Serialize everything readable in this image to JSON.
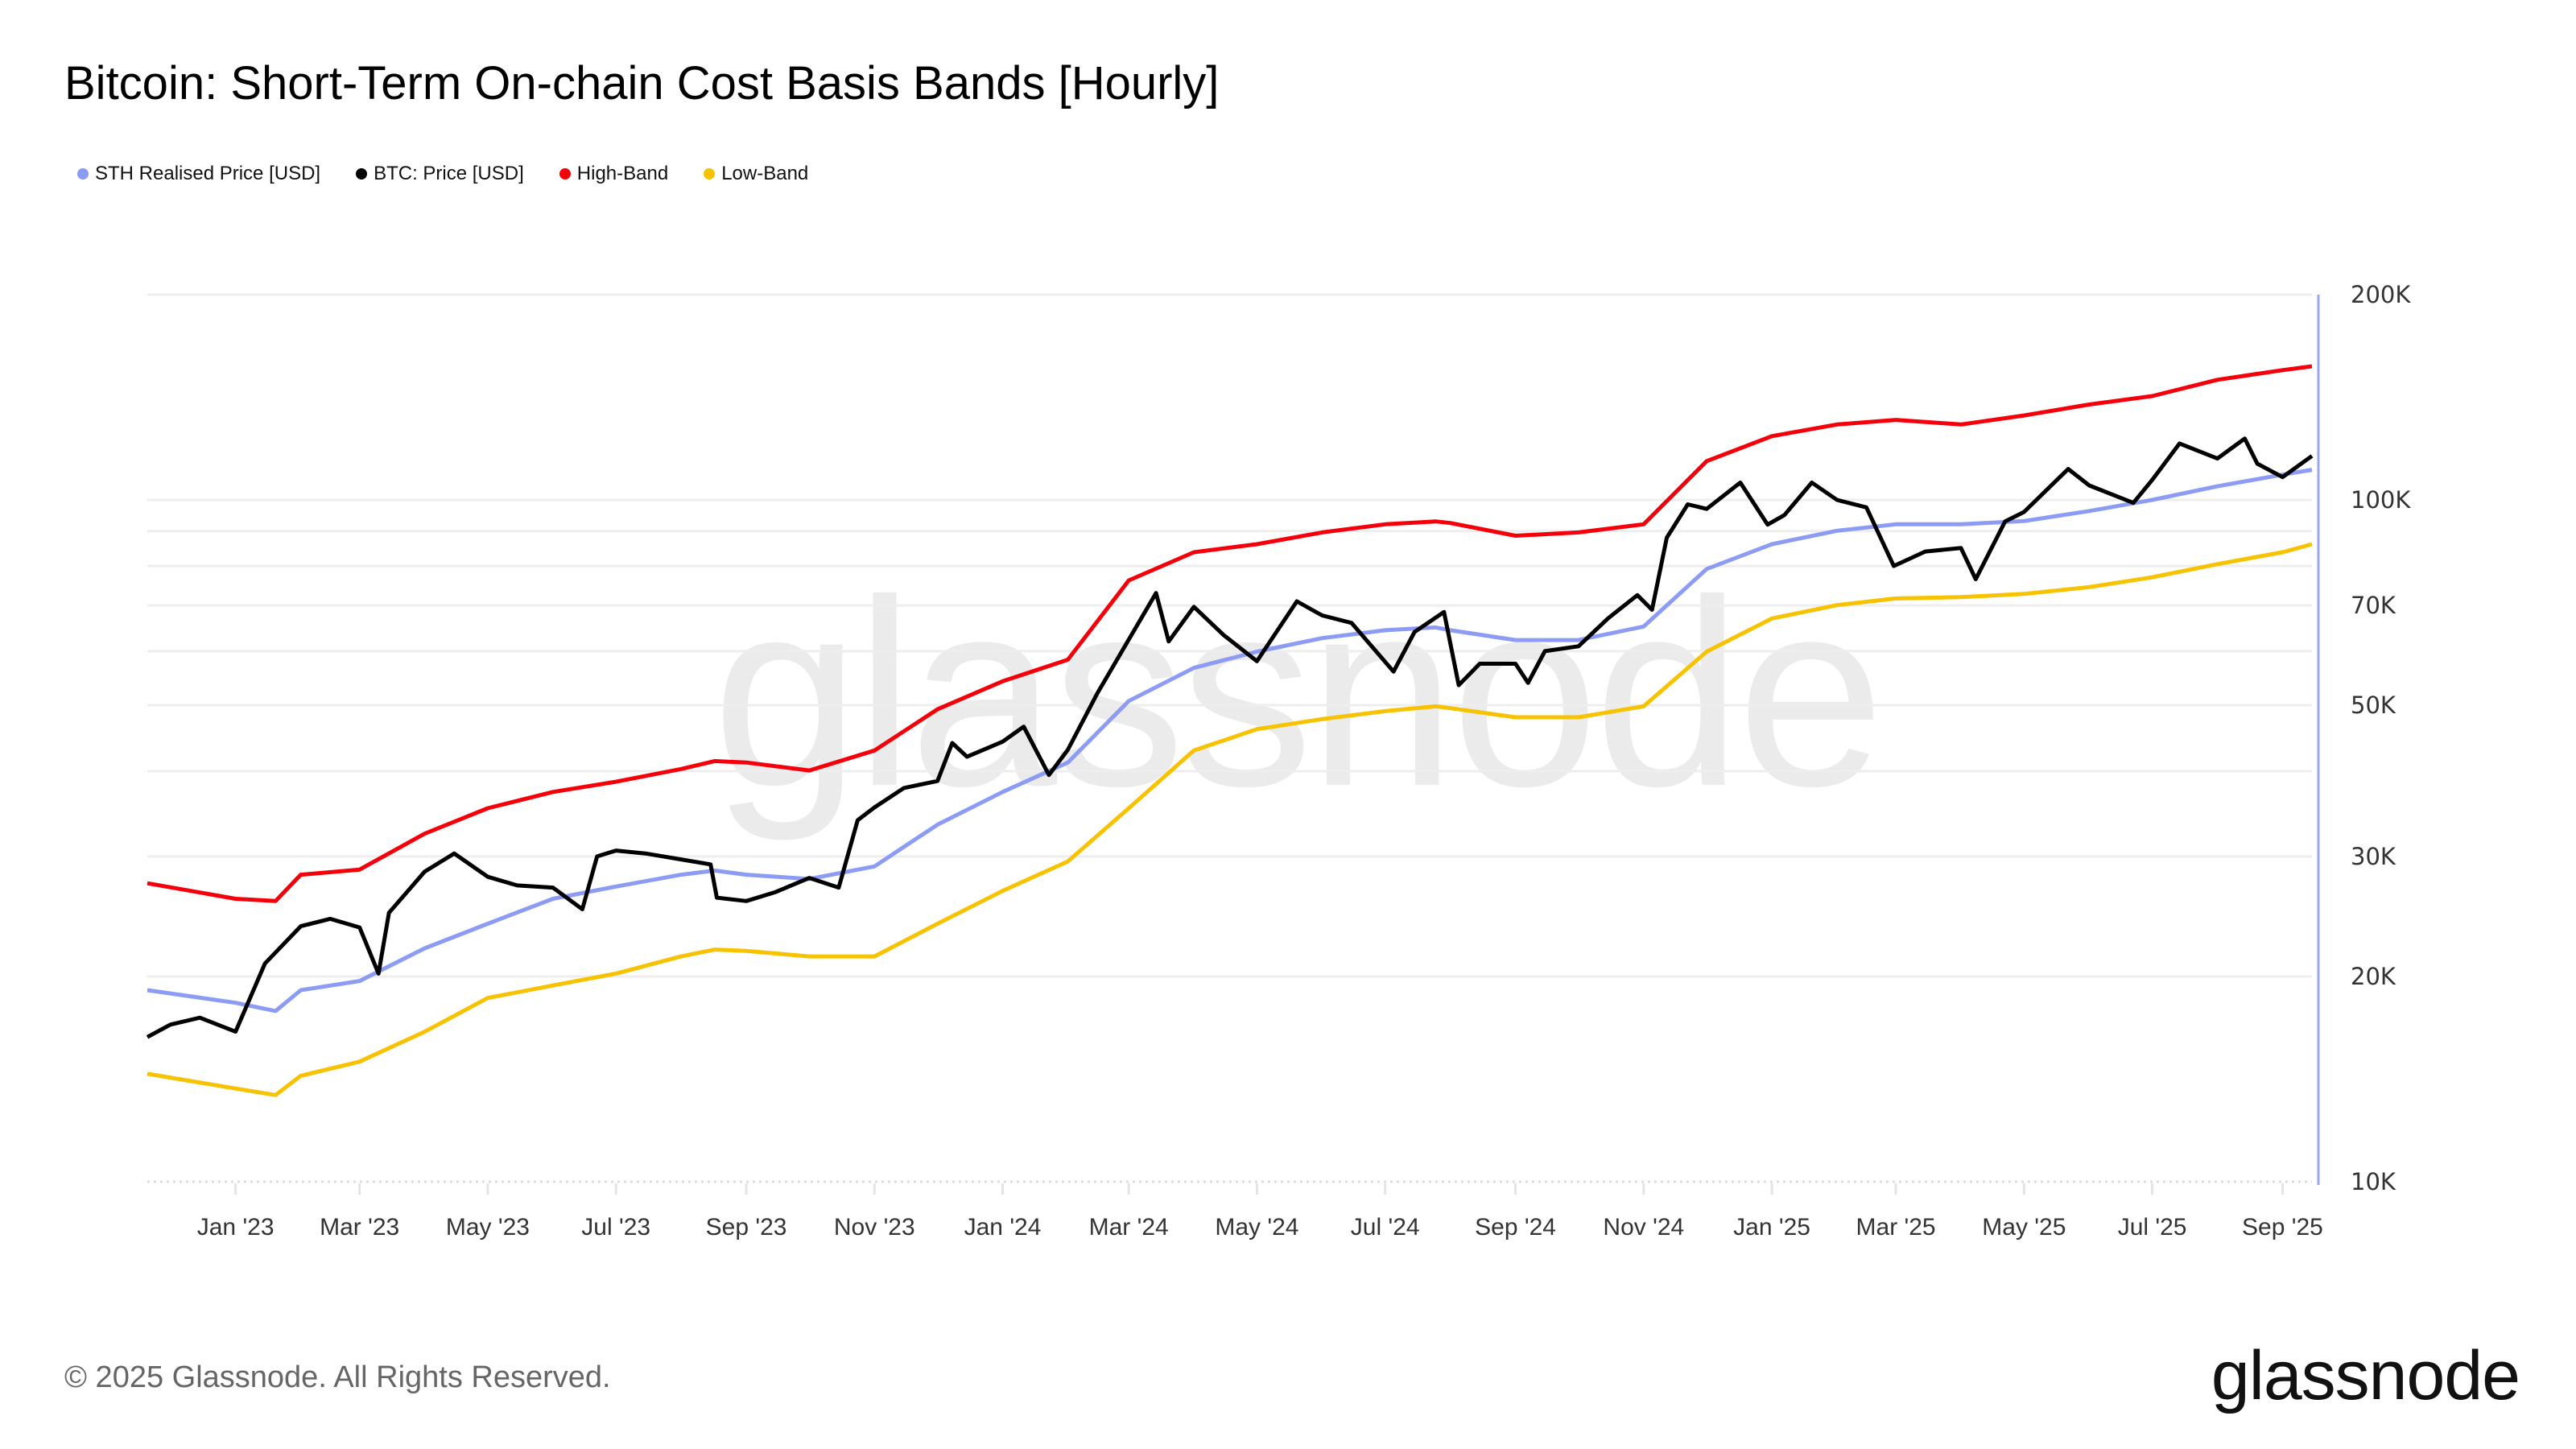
{
  "title": "Bitcoin: Short-Term On-chain Cost Basis Bands [Hourly]",
  "footer": "© 2025 Glassnode. All Rights Reserved.",
  "logo_text": "glassnode",
  "watermark_text": "glassnode",
  "legend": [
    {
      "label": "STH Realised Price [USD]",
      "color": "#8c9cf5"
    },
    {
      "label": "BTC: Price [USD]",
      "color": "#000000"
    },
    {
      "label": "High-Band",
      "color": "#f5000a"
    },
    {
      "label": "Low-Band",
      "color": "#f7c200"
    }
  ],
  "chart_data": {
    "type": "line",
    "title": "Bitcoin: Short-Term On-chain Cost Basis Bands [Hourly]",
    "y_scale": "log",
    "ylim": [
      10000,
      200000
    ],
    "xlim": [
      "2022-11-20",
      "2025-09-15"
    ],
    "grid": "horizontal",
    "legend_position": "top-left",
    "y_axis_side": "right",
    "y_gridlines": [
      10000,
      20000,
      30000,
      40000,
      50000,
      60000,
      70000,
      80000,
      90000,
      100000,
      200000
    ],
    "y_ticks": [
      {
        "value": 200000,
        "label": "200K"
      },
      {
        "value": 100000,
        "label": "100K"
      },
      {
        "value": 70000,
        "label": "70K"
      },
      {
        "value": 50000,
        "label": "50K"
      },
      {
        "value": 30000,
        "label": "30K"
      },
      {
        "value": 20000,
        "label": "20K"
      },
      {
        "value": 10000,
        "label": "10K"
      }
    ],
    "x_ticks": [
      {
        "date": "2023-01-01",
        "label": "Jan '23"
      },
      {
        "date": "2023-03-01",
        "label": "Mar '23"
      },
      {
        "date": "2023-05-01",
        "label": "May '23"
      },
      {
        "date": "2023-07-01",
        "label": "Jul '23"
      },
      {
        "date": "2023-09-01",
        "label": "Sep '23"
      },
      {
        "date": "2023-11-01",
        "label": "Nov '23"
      },
      {
        "date": "2024-01-01",
        "label": "Jan '24"
      },
      {
        "date": "2024-03-01",
        "label": "Mar '24"
      },
      {
        "date": "2024-05-01",
        "label": "May '24"
      },
      {
        "date": "2024-07-01",
        "label": "Jul '24"
      },
      {
        "date": "2024-09-01",
        "label": "Sep '24"
      },
      {
        "date": "2024-11-01",
        "label": "Nov '24"
      },
      {
        "date": "2025-01-01",
        "label": "Jan '25"
      },
      {
        "date": "2025-03-01",
        "label": "Mar '25"
      },
      {
        "date": "2025-05-01",
        "label": "May '25"
      },
      {
        "date": "2025-07-01",
        "label": "Jul '25"
      },
      {
        "date": "2025-09-01",
        "label": "Sep '25"
      }
    ],
    "band_dates": [
      "2022-11-20",
      "2023-01-01",
      "2023-01-20",
      "2023-02-01",
      "2023-03-01",
      "2023-04-01",
      "2023-05-01",
      "2023-06-01",
      "2023-07-01",
      "2023-08-01",
      "2023-08-17",
      "2023-09-01",
      "2023-10-01",
      "2023-11-01",
      "2023-12-01",
      "2024-01-01",
      "2024-02-01",
      "2024-03-01",
      "2024-04-01",
      "2024-05-01",
      "2024-06-01",
      "2024-07-01",
      "2024-07-25",
      "2024-08-01",
      "2024-09-01",
      "2024-10-01",
      "2024-11-01",
      "2024-12-01",
      "2025-01-01",
      "2025-02-01",
      "2025-03-01",
      "2025-04-01",
      "2025-05-01",
      "2025-06-01",
      "2025-07-01",
      "2025-08-01",
      "2025-09-01",
      "2025-09-15"
    ],
    "series": [
      {
        "name": "High-Band",
        "color": "#f5000a",
        "values": [
          27400,
          26000,
          25800,
          28200,
          28700,
          32400,
          35300,
          37300,
          38600,
          40300,
          41400,
          41200,
          40100,
          42900,
          49300,
          54200,
          58300,
          76200,
          83800,
          86100,
          89600,
          92100,
          93000,
          92500,
          88600,
          89600,
          92100,
          114000,
          124000,
          129000,
          131000,
          129000,
          133000,
          138000,
          142000,
          150000,
          155000,
          157000
        ]
      },
      {
        "name": "STH Realised Price [USD]",
        "color": "#8c9cf5",
        "values": [
          19100,
          18300,
          17800,
          19100,
          19700,
          22000,
          23900,
          26000,
          27100,
          28200,
          28600,
          28200,
          27800,
          29000,
          33400,
          37300,
          41200,
          50700,
          56700,
          59900,
          62700,
          64400,
          65000,
          64400,
          62300,
          62300,
          65200,
          79200,
          86100,
          90100,
          92100,
          92100,
          93100,
          96300,
          100000,
          104700,
          108900,
          110700
        ]
      },
      {
        "name": "Low-Band",
        "color": "#f7c200",
        "values": [
          14400,
          13700,
          13400,
          14300,
          15000,
          16600,
          18600,
          19400,
          20200,
          21400,
          21900,
          21800,
          21400,
          21400,
          23900,
          26700,
          29500,
          35300,
          42900,
          46100,
          47700,
          49000,
          49800,
          49500,
          48000,
          48000,
          49800,
          59900,
          67000,
          70100,
          71700,
          72000,
          72800,
          74500,
          77000,
          80500,
          83800,
          86100
        ]
      }
    ],
    "btc": {
      "name": "BTC: Price [USD]",
      "color": "#000000",
      "dates": [
        "2022-11-20",
        "2022-12-01",
        "2022-12-15",
        "2023-01-01",
        "2023-01-15",
        "2023-02-01",
        "2023-02-15",
        "2023-03-01",
        "2023-03-10",
        "2023-03-15",
        "2023-04-01",
        "2023-04-15",
        "2023-05-01",
        "2023-05-15",
        "2023-06-01",
        "2023-06-15",
        "2023-06-22",
        "2023-07-01",
        "2023-07-15",
        "2023-08-01",
        "2023-08-15",
        "2023-08-18",
        "2023-09-01",
        "2023-09-15",
        "2023-10-01",
        "2023-10-15",
        "2023-10-24",
        "2023-11-01",
        "2023-11-15",
        "2023-12-01",
        "2023-12-08",
        "2023-12-15",
        "2024-01-01",
        "2024-01-11",
        "2024-01-23",
        "2024-02-01",
        "2024-02-15",
        "2024-03-01",
        "2024-03-14",
        "2024-03-20",
        "2024-04-01",
        "2024-04-15",
        "2024-05-01",
        "2024-05-20",
        "2024-06-01",
        "2024-06-15",
        "2024-07-05",
        "2024-07-15",
        "2024-07-29",
        "2024-08-05",
        "2024-08-15",
        "2024-09-01",
        "2024-09-07",
        "2024-09-15",
        "2024-10-01",
        "2024-10-15",
        "2024-10-29",
        "2024-11-05",
        "2024-11-12",
        "2024-11-22",
        "2024-12-01",
        "2024-12-17",
        "2024-12-30",
        "2025-01-07",
        "2025-01-20",
        "2025-02-01",
        "2025-02-15",
        "2025-02-28",
        "2025-03-15",
        "2025-04-01",
        "2025-04-08",
        "2025-04-22",
        "2025-05-01",
        "2025-05-22",
        "2025-06-01",
        "2025-06-22",
        "2025-07-01",
        "2025-07-14",
        "2025-08-01",
        "2025-08-14",
        "2025-08-20",
        "2025-09-01",
        "2025-09-15"
      ],
      "values": [
        16300,
        17000,
        17400,
        16600,
        20900,
        23700,
        24300,
        23600,
        20200,
        24800,
        28500,
        30300,
        28000,
        27200,
        27000,
        25100,
        30000,
        30600,
        30300,
        29700,
        29200,
        26100,
        25800,
        26600,
        27900,
        27000,
        33900,
        35400,
        37800,
        38700,
        44000,
        42000,
        44200,
        46500,
        39500,
        43000,
        52000,
        62400,
        73000,
        62000,
        69700,
        63400,
        58000,
        71000,
        67700,
        66000,
        56000,
        64000,
        68500,
        53500,
        57500,
        57500,
        53900,
        60000,
        61000,
        67000,
        72500,
        69000,
        88000,
        98500,
        97000,
        106000,
        92000,
        95000,
        106000,
        100000,
        97500,
        80000,
        84000,
        85000,
        76500,
        93000,
        96000,
        111000,
        105000,
        99000,
        107000,
        121000,
        115000,
        123000,
        113000,
        108000,
        116000
      ]
    }
  }
}
